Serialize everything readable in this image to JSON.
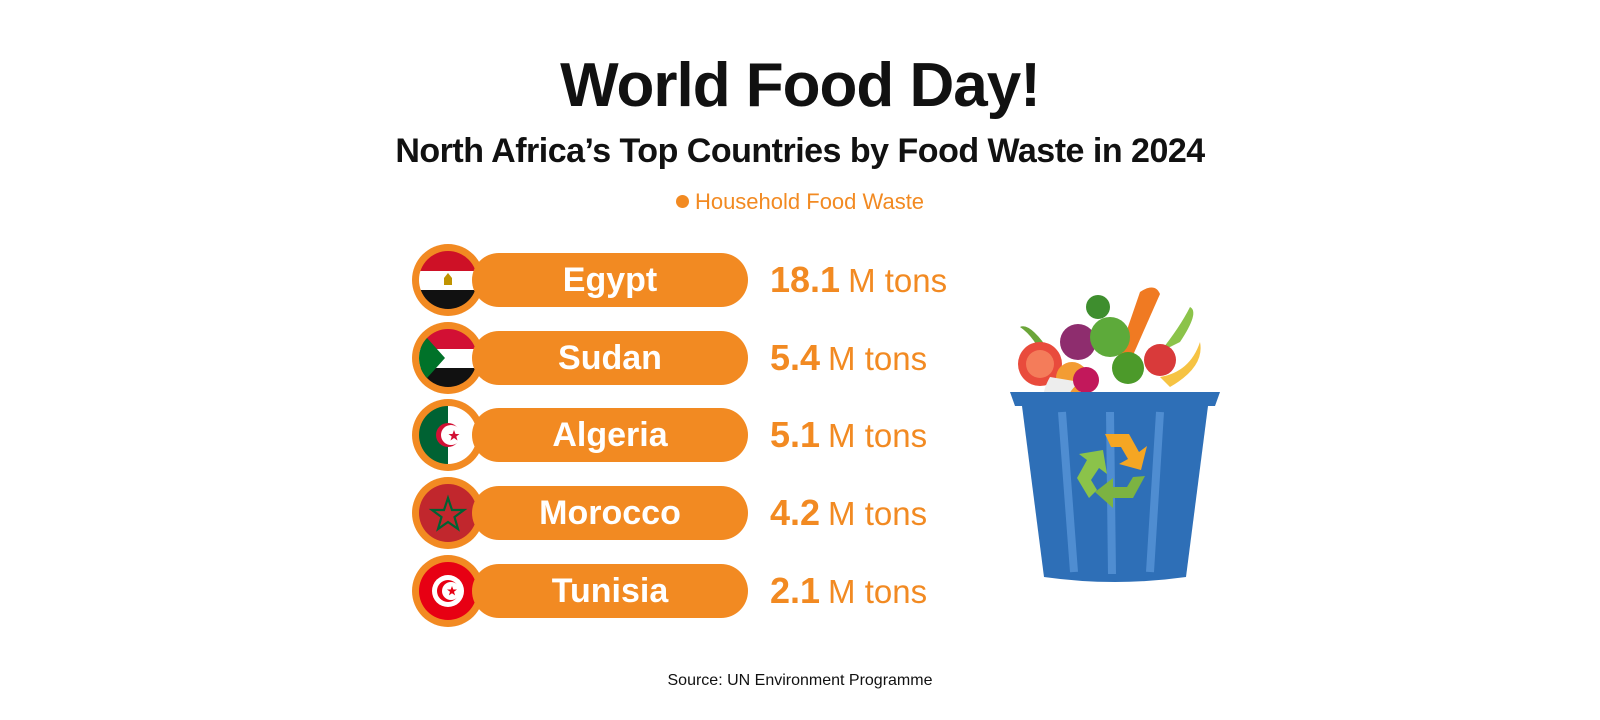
{
  "title": "World Food Day!",
  "subtitle": "North Africa’s Top Countries by Food Waste in 2024",
  "legend": "Household Food Waste",
  "source": "Source: UN Environment Programme",
  "colors": {
    "accent": "#F28A22",
    "text": "#111111"
  },
  "chart_data": {
    "type": "bar",
    "categories": [
      "Egypt",
      "Sudan",
      "Algeria",
      "Morocco",
      "Tunisia"
    ],
    "series": [
      {
        "name": "Household Food Waste",
        "values": [
          18.1,
          5.4,
          5.1,
          4.2,
          2.1
        ]
      }
    ],
    "value_labels": [
      "18.1",
      "5.4",
      "5.1",
      "4.2",
      "2.1"
    ],
    "unit": "M tons",
    "title": "World Food Day!",
    "subtitle": "North Africa’s Top Countries by Food Waste in 2024",
    "legend_position": "top"
  },
  "flag_icons": [
    "egypt-flag-icon",
    "sudan-flag-icon",
    "algeria-flag-icon",
    "morocco-flag-icon",
    "tunisia-flag-icon"
  ],
  "illustration": "recycling-bin-with-vegetables"
}
